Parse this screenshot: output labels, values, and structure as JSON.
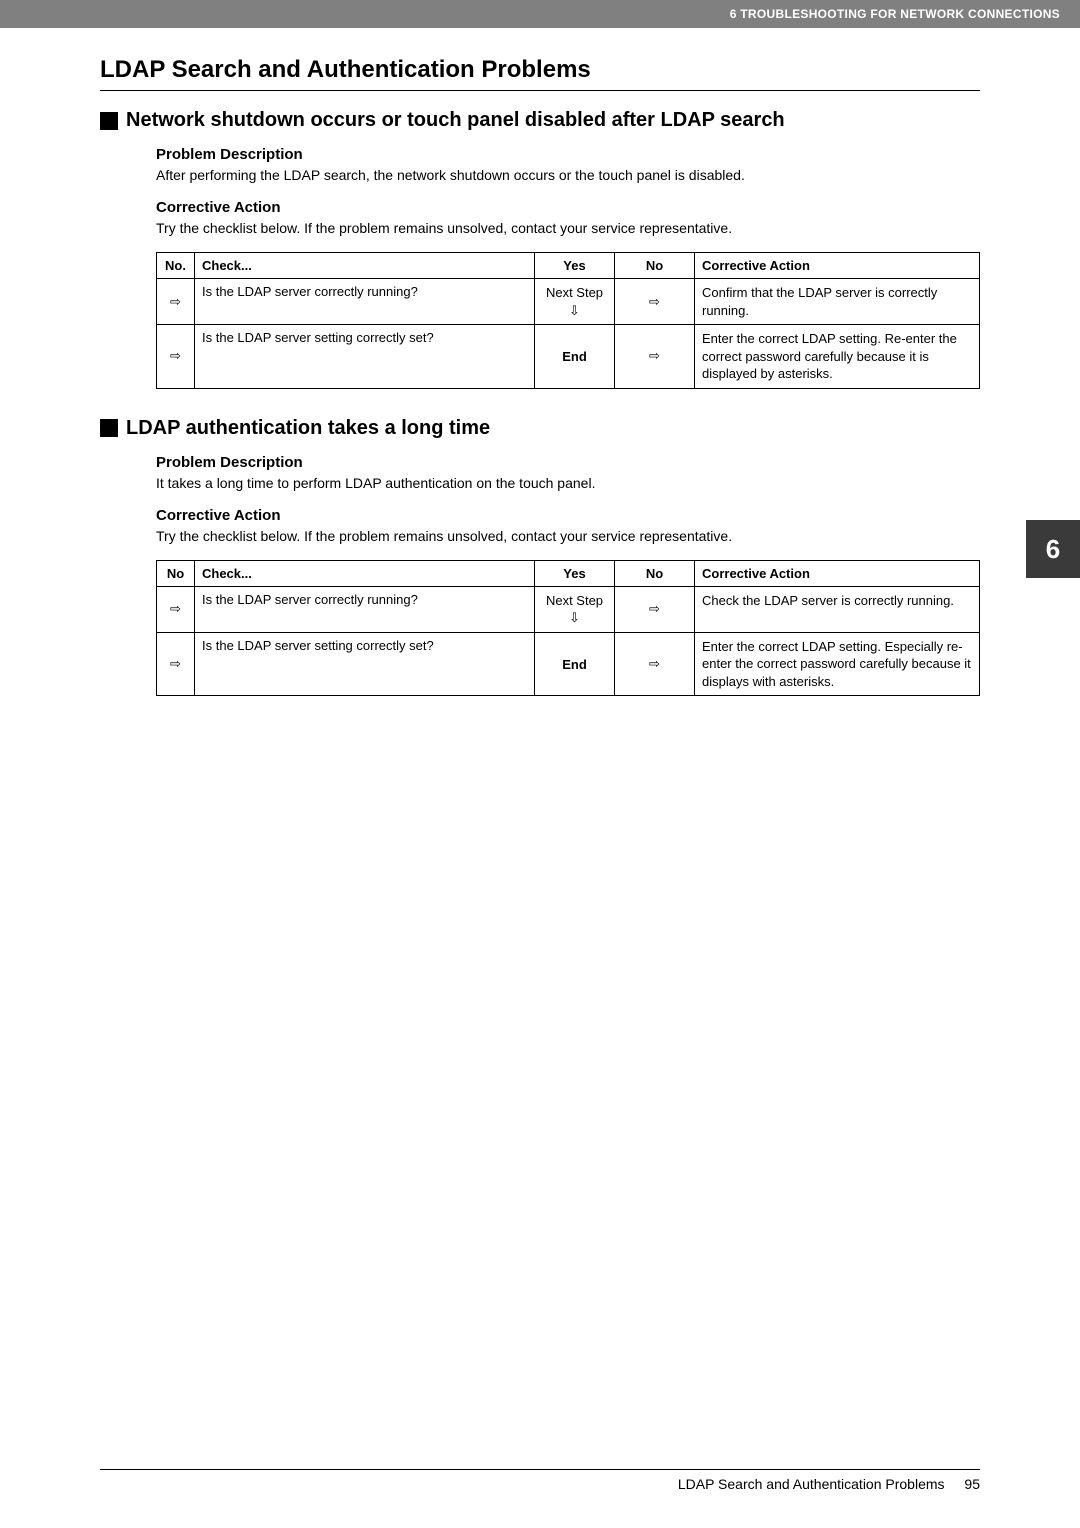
{
  "header": {
    "text": "6 TROUBLESHOOTING FOR NETWORK CONNECTIONS"
  },
  "title": "LDAP Search and Authentication Problems",
  "section1": {
    "heading": "Network shutdown occurs or touch panel disabled after LDAP search",
    "pd_label": "Problem Description",
    "pd_text": "After performing the LDAP search, the network shutdown occurs or the touch panel is disabled.",
    "ca_label": "Corrective Action",
    "ca_text": "Try the checklist below. If the problem remains unsolved, contact your service representative.",
    "table": {
      "cols": {
        "no": "No.",
        "check": "Check...",
        "yes": "Yes",
        "no_col": "No",
        "action": "Corrective Action"
      },
      "rows": [
        {
          "no": "⇨",
          "check": "Is the LDAP server correctly running?",
          "yes": "Next Step\n⇩",
          "action": "Confirm that the LDAP server is correctly running."
        },
        {
          "no": "⇨",
          "check": "Is the LDAP server setting correctly set?",
          "yes": "End",
          "action": "Enter the correct LDAP setting. Re-enter the correct password carefully because it is displayed by asterisks."
        }
      ]
    }
  },
  "section2": {
    "heading": "LDAP authentication takes a long time",
    "pd_label": "Problem Description",
    "pd_text": "It takes a long time to perform LDAP authentication on the touch panel.",
    "ca_label": "Corrective Action",
    "ca_text": "Try the checklist below. If the problem remains unsolved, contact your service representative.",
    "table": {
      "cols": {
        "no": "No",
        "check": "Check...",
        "yes": "Yes",
        "no_col": "No",
        "action": "Corrective Action"
      },
      "rows": [
        {
          "no": "⇨",
          "check": "Is the LDAP server correctly running?",
          "yes": "Next Step\n⇩",
          "action": "Check the LDAP server is correctly running."
        },
        {
          "no": "⇨",
          "check": "Is the LDAP server setting correctly set?",
          "yes": "End",
          "action": "Enter the correct LDAP setting. Especially re-enter the correct password carefully because it displays with asterisks."
        }
      ]
    }
  },
  "sidetab": "6",
  "footer": {
    "text": "LDAP Search and Authentication Problems",
    "page": "95"
  }
}
